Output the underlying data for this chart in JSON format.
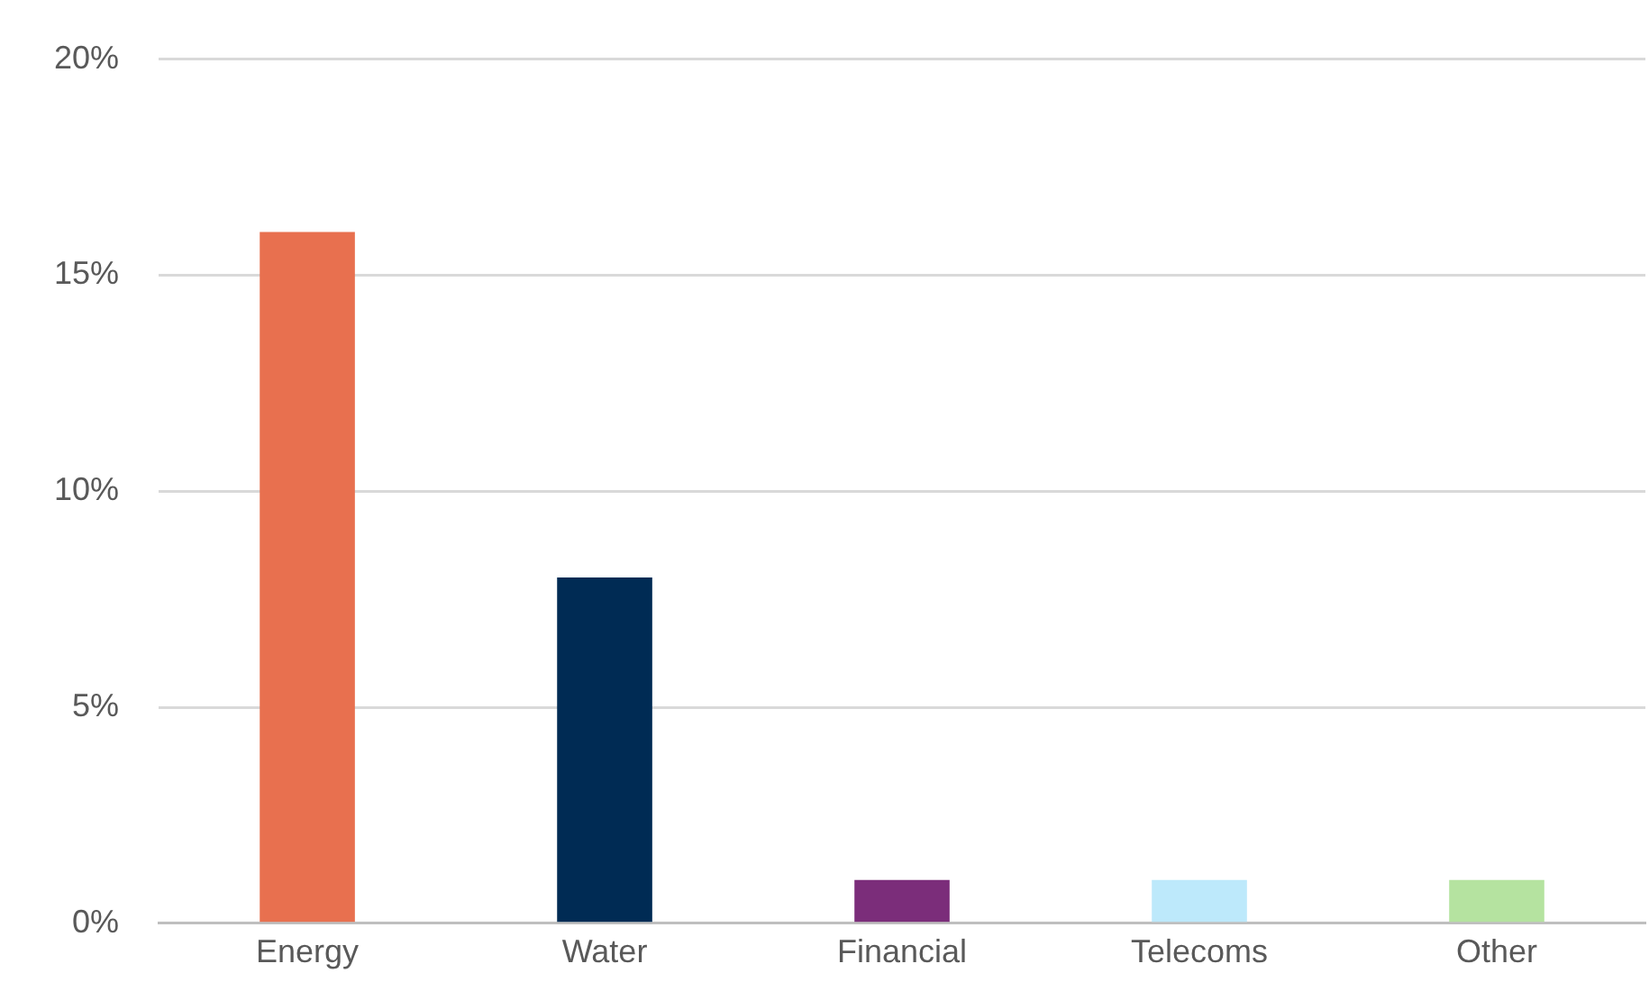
{
  "chart_data": {
    "type": "bar",
    "categories": [
      "Energy",
      "Water",
      "Financial",
      "Telecoms",
      "Other"
    ],
    "values": [
      16,
      8,
      1,
      1,
      1
    ],
    "colors": [
      "#e8704f",
      "#002b54",
      "#7b2d7a",
      "#bde9fb",
      "#b5e3a0"
    ],
    "ylim": [
      0,
      20
    ],
    "yticks": [
      {
        "value": 0,
        "label": "0%"
      },
      {
        "value": 5,
        "label": "5%"
      },
      {
        "value": 10,
        "label": "10%"
      },
      {
        "value": 15,
        "label": "15%"
      },
      {
        "value": 20,
        "label": "20%"
      }
    ],
    "grid": "y"
  }
}
